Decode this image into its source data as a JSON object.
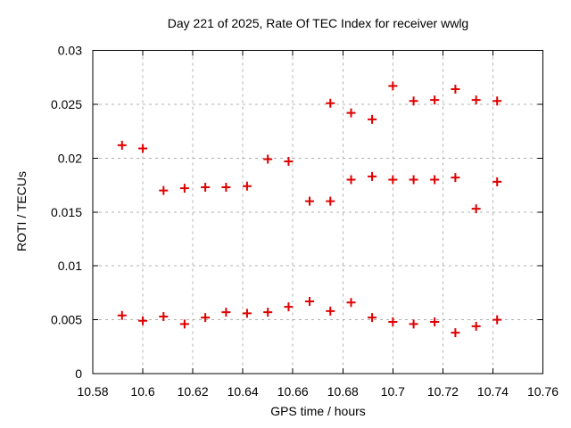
{
  "window": {
    "background": "#ffffff",
    "text_color": "#000000"
  },
  "chart_data": {
    "type": "scatter",
    "title": "Day 221 of 2025, Rate Of TEC Index for receiver wwlg",
    "xlabel": "GPS time / hours",
    "ylabel": "ROTI / TECUs",
    "xlim": [
      10.58,
      10.76
    ],
    "ylim": [
      0,
      0.03
    ],
    "grid": true,
    "legend": "none",
    "grid_color": "#b0b0b0",
    "frame_color": "#000000",
    "marker": {
      "shape": "plus",
      "color": "#e00000",
      "half_size": 5,
      "stroke_width": 2
    },
    "xticks": {
      "values": [
        10.58,
        10.6,
        10.62,
        10.64,
        10.66,
        10.68,
        10.7,
        10.72,
        10.74,
        10.76
      ],
      "labels": [
        "10.58",
        "10.6",
        "10.62",
        "10.64",
        "10.66",
        "10.68",
        "10.7",
        "10.72",
        "10.74",
        "10.76"
      ]
    },
    "yticks": {
      "values": [
        0,
        0.005,
        0.01,
        0.015,
        0.02,
        0.025,
        0.03
      ],
      "labels": [
        "0",
        "0.005",
        "0.01",
        "0.015",
        "0.02",
        "0.025",
        "0.03"
      ]
    },
    "points": [
      [
        10.5917,
        0.0212
      ],
      [
        10.5917,
        0.0054
      ],
      [
        10.6,
        0.0209
      ],
      [
        10.6,
        0.0049
      ],
      [
        10.6083,
        0.017
      ],
      [
        10.6083,
        0.0053
      ],
      [
        10.6167,
        0.0172
      ],
      [
        10.6167,
        0.0046
      ],
      [
        10.625,
        0.0173
      ],
      [
        10.625,
        0.0052
      ],
      [
        10.6333,
        0.0173
      ],
      [
        10.6333,
        0.0057
      ],
      [
        10.6417,
        0.0174
      ],
      [
        10.6417,
        0.0056
      ],
      [
        10.65,
        0.0199
      ],
      [
        10.65,
        0.0057
      ],
      [
        10.6583,
        0.0197
      ],
      [
        10.6583,
        0.0062
      ],
      [
        10.6667,
        0.016
      ],
      [
        10.6667,
        0.0067
      ],
      [
        10.675,
        0.0251
      ],
      [
        10.675,
        0.016
      ],
      [
        10.675,
        0.0058
      ],
      [
        10.6833,
        0.0242
      ],
      [
        10.6833,
        0.018
      ],
      [
        10.6833,
        0.0066
      ],
      [
        10.6917,
        0.0236
      ],
      [
        10.6917,
        0.0183
      ],
      [
        10.6917,
        0.0052
      ],
      [
        10.7,
        0.0267
      ],
      [
        10.7,
        0.018
      ],
      [
        10.7,
        0.0048
      ],
      [
        10.7083,
        0.0253
      ],
      [
        10.7083,
        0.018
      ],
      [
        10.7083,
        0.0046
      ],
      [
        10.7167,
        0.0254
      ],
      [
        10.7167,
        0.018
      ],
      [
        10.7167,
        0.0048
      ],
      [
        10.725,
        0.0264
      ],
      [
        10.725,
        0.0182
      ],
      [
        10.725,
        0.0038
      ],
      [
        10.7333,
        0.0254
      ],
      [
        10.7333,
        0.0153
      ],
      [
        10.7333,
        0.0044
      ],
      [
        10.7417,
        0.0253
      ],
      [
        10.7417,
        0.0178
      ],
      [
        10.7417,
        0.005
      ]
    ]
  }
}
